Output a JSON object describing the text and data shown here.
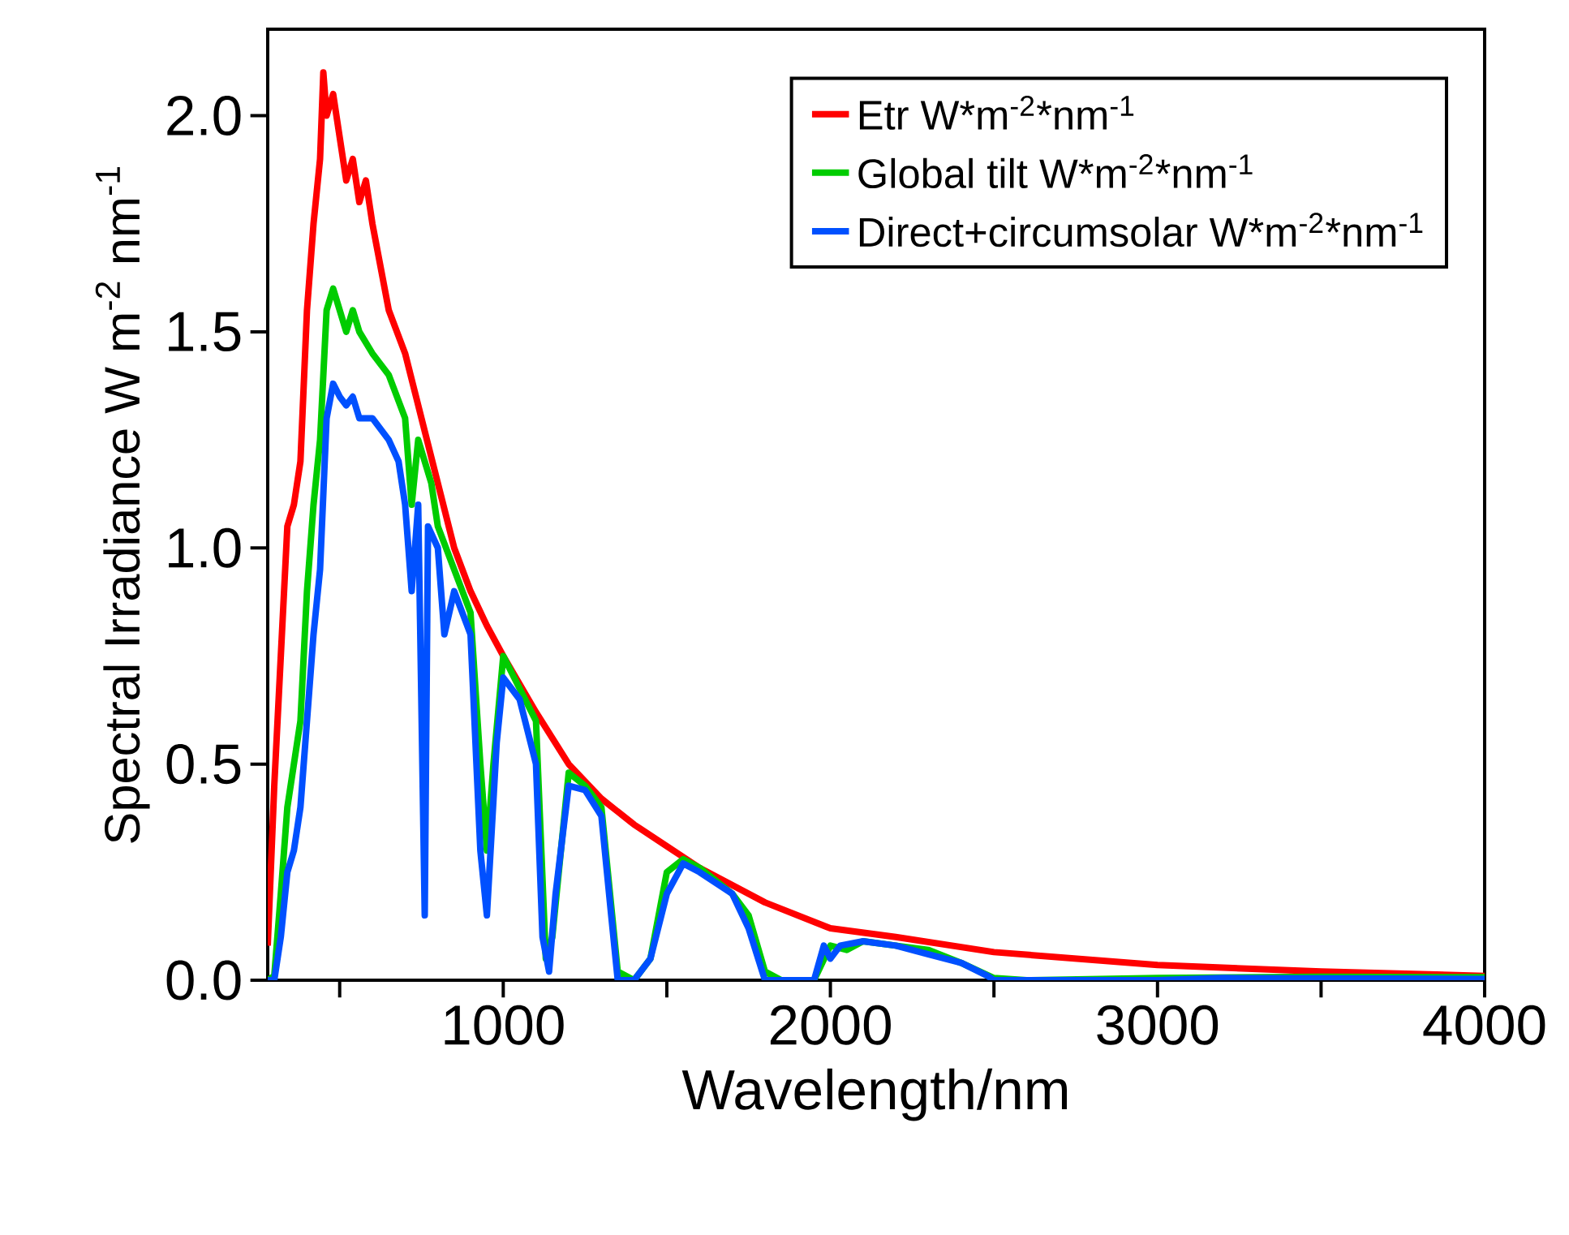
{
  "chart_data": {
    "type": "line",
    "xlabel": "Wavelength/nm",
    "ylabel": "Spectral Irradiance W m$^{-2}$ nm$^{-1}$",
    "xlim": [
      280,
      4000
    ],
    "ylim": [
      0,
      2.2
    ],
    "xticks": [
      {
        "value": 500,
        "label": null
      },
      1000,
      {
        "value": 1500,
        "label": null
      },
      2000,
      {
        "value": 2500,
        "label": null
      },
      3000,
      {
        "value": 3500,
        "label": null
      },
      4000
    ],
    "yticks": [
      {
        "value": 0,
        "label": "0.0"
      },
      {
        "value": 0.5,
        "label": "0.5"
      },
      {
        "value": 1,
        "label": "1.0"
      },
      {
        "value": 1.5,
        "label": "1.5"
      },
      {
        "value": 2,
        "label": "2.0"
      }
    ],
    "grid": false,
    "legend": "top right",
    "marker": "none",
    "line_style": "solid",
    "series": [
      {
        "name": "Etr W*m$^{-2}$*nm$^{-1}$",
        "color": "#ff0000",
        "x": [
          280,
          300,
          320,
          340,
          360,
          380,
          400,
          420,
          440,
          450,
          460,
          480,
          500,
          520,
          540,
          560,
          580,
          600,
          650,
          700,
          750,
          800,
          850,
          900,
          950,
          1000,
          1100,
          1200,
          1300,
          1400,
          1500,
          1600,
          1700,
          1800,
          2000,
          2200,
          2500,
          3000,
          3500,
          4000
        ],
        "values": [
          0.08,
          0.45,
          0.75,
          1.05,
          1.1,
          1.2,
          1.55,
          1.75,
          1.9,
          2.1,
          2.0,
          2.05,
          1.95,
          1.85,
          1.9,
          1.8,
          1.85,
          1.75,
          1.55,
          1.45,
          1.3,
          1.15,
          1.0,
          0.9,
          0.82,
          0.75,
          0.62,
          0.5,
          0.42,
          0.36,
          0.31,
          0.26,
          0.22,
          0.18,
          0.12,
          0.1,
          0.065,
          0.035,
          0.02,
          0.01
        ]
      },
      {
        "name": "Global tilt  W*m$^{-2}$*nm$^{-1}$",
        "color": "#00cc00",
        "x": [
          280,
          300,
          320,
          340,
          360,
          380,
          400,
          420,
          440,
          460,
          480,
          500,
          520,
          540,
          560,
          600,
          650,
          700,
          720,
          740,
          760,
          780,
          800,
          850,
          900,
          930,
          950,
          970,
          1000,
          1100,
          1130,
          1150,
          1200,
          1250,
          1300,
          1350,
          1400,
          1450,
          1500,
          1550,
          1600,
          1700,
          1750,
          1800,
          1850,
          1950,
          2000,
          2050,
          2100,
          2200,
          2300,
          2400,
          2500,
          2600,
          3000,
          3500,
          4000
        ],
        "values": [
          0,
          0.01,
          0.2,
          0.4,
          0.5,
          0.6,
          0.9,
          1.1,
          1.25,
          1.55,
          1.6,
          1.55,
          1.5,
          1.55,
          1.5,
          1.45,
          1.4,
          1.3,
          1.1,
          1.25,
          null,
          1.15,
          1.05,
          0.95,
          0.85,
          0.5,
          0.3,
          0.5,
          0.75,
          0.6,
          0.05,
          0.1,
          0.48,
          0.45,
          0.4,
          0.02,
          0,
          0.05,
          0.25,
          0.28,
          0.26,
          0.2,
          0.15,
          0.02,
          0,
          0,
          0.08,
          0.07,
          0.09,
          0.08,
          0.07,
          0.04,
          0.005,
          0,
          0.005,
          0.008,
          0.007
        ]
      },
      {
        "name": "Direct+circumsolar W*m$^{-2}$*nm$^{-1}$",
        "color": "#0050ff",
        "x": [
          280,
          300,
          320,
          340,
          360,
          380,
          400,
          420,
          440,
          460,
          480,
          500,
          520,
          540,
          560,
          600,
          650,
          680,
          700,
          720,
          740,
          760,
          770,
          800,
          820,
          850,
          900,
          930,
          950,
          980,
          1000,
          1050,
          1100,
          1120,
          1140,
          1160,
          1200,
          1250,
          1300,
          1330,
          1350,
          1400,
          1450,
          1500,
          1550,
          1600,
          1700,
          1750,
          1800,
          1950,
          1980,
          2000,
          2030,
          2100,
          2200,
          2300,
          2400,
          2480,
          2500,
          3000,
          3200,
          3500,
          4000
        ],
        "values": [
          0,
          0,
          0.1,
          0.25,
          0.3,
          0.4,
          0.6,
          0.8,
          0.95,
          1.3,
          1.38,
          1.35,
          1.33,
          1.35,
          1.3,
          1.3,
          1.25,
          1.2,
          1.1,
          0.9,
          1.1,
          0.15,
          1.05,
          1.0,
          0.8,
          0.9,
          0.8,
          0.3,
          0.15,
          0.55,
          0.7,
          0.65,
          0.5,
          0.1,
          0.02,
          0.2,
          0.45,
          0.44,
          0.38,
          0.15,
          0,
          0,
          0.05,
          0.2,
          0.27,
          0.25,
          0.2,
          0.12,
          0,
          0,
          0.08,
          0.05,
          0.08,
          0.09,
          0.08,
          0.06,
          0.04,
          0.01,
          0,
          0,
          0.005,
          0.004,
          0.003
        ]
      }
    ]
  }
}
